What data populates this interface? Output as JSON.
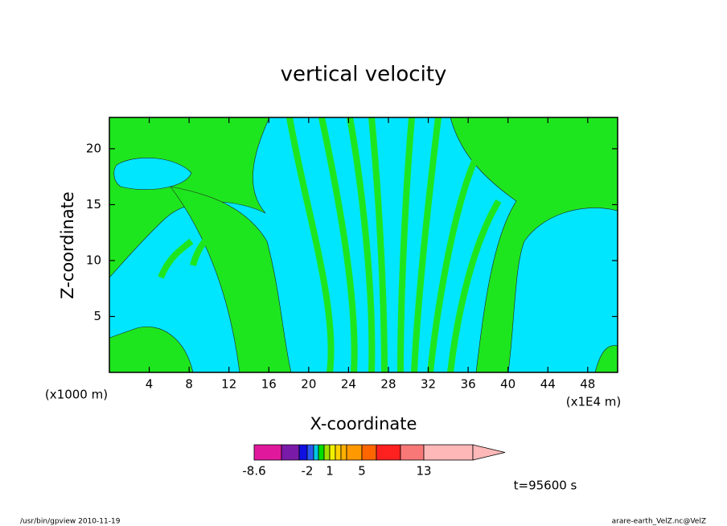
{
  "chart_data": {
    "type": "contour",
    "title": "vertical velocity",
    "xlabel": "X-coordinate",
    "ylabel": "Z-coordinate",
    "xunit": "(x1000 m)",
    "xunit_right": "(x1E4 m)",
    "xlim": [
      0,
      51
    ],
    "ylim": [
      0,
      22.8
    ],
    "xticks": [
      4,
      8,
      12,
      16,
      20,
      24,
      28,
      32,
      36,
      40,
      44,
      48
    ],
    "yticks": [
      5,
      10,
      15,
      20
    ],
    "colorbar": {
      "colors": [
        "#e0199c",
        "#7a1aa8",
        "#1010e0",
        "#2a5af0",
        "#00c8e0",
        "#00e000",
        "#a0e000",
        "#f0f000",
        "#ffd000",
        "#ffb000",
        "#ff9900",
        "#ff6600",
        "#ff2020",
        "#f87878",
        "#ffb8b8"
      ],
      "ticks": [
        -8.6,
        -2,
        1,
        5,
        13
      ]
    },
    "annotation": "t=95600 s",
    "footer_left": "/usr/bin/gpview   2010-11-19",
    "footer_right": "arare-earth_VelZ.nc@VelZ"
  }
}
